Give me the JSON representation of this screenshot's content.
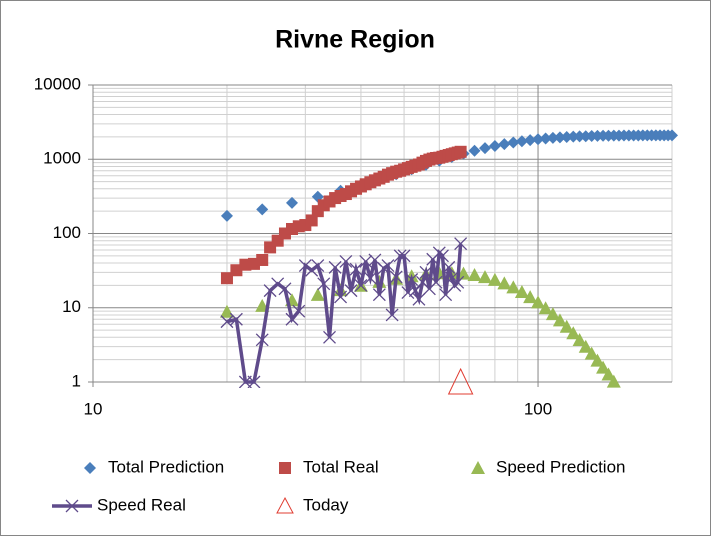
{
  "chart_data": {
    "type": "scatter",
    "title": "Rivne Region",
    "xlog": true,
    "ylog": true,
    "grid": true,
    "minor_grid": true,
    "legend": "bottom",
    "xlim": [
      10,
      200
    ],
    "xticks": [
      10,
      100
    ],
    "ylim": [
      1,
      10000
    ],
    "yticks": [
      1,
      10,
      100,
      1000,
      10000
    ],
    "series": [
      {
        "name": "Total Prediction",
        "color": "#4a7ebb",
        "marker": "diamond",
        "x": [
          20,
          24,
          28,
          32,
          36,
          40,
          44,
          48,
          52,
          56,
          60,
          64,
          68,
          72,
          76,
          80,
          84,
          88,
          92,
          96,
          100,
          104,
          108,
          112,
          116,
          120,
          124,
          128,
          132,
          136,
          140,
          144,
          148,
          152,
          156,
          160,
          164,
          168,
          172,
          176,
          180,
          184,
          188,
          192,
          196,
          200
        ],
        "values": [
          173,
          211,
          258,
          313,
          377,
          451,
          535,
          629,
          732,
          841,
          956,
          1074,
          1190,
          1303,
          1410,
          1510,
          1600,
          1680,
          1750,
          1810,
          1862,
          1905,
          1941,
          1971,
          1996,
          2016,
          2032,
          2044,
          2055,
          2063,
          2069,
          2075,
          2079,
          2083,
          2086,
          2088,
          2090,
          2092,
          2093,
          2094,
          2095,
          2096,
          2097,
          2097,
          2098,
          2098
        ]
      },
      {
        "name": "Total Real",
        "color": "#be4b48",
        "marker": "square",
        "x": [
          20,
          21,
          22,
          23,
          24,
          25,
          26,
          27,
          28,
          29,
          30,
          31,
          32,
          33,
          34,
          35,
          36,
          37,
          38,
          39,
          40,
          41,
          42,
          43,
          44,
          45,
          46,
          47,
          48,
          49,
          50,
          51,
          52,
          53,
          54,
          55,
          56,
          57,
          58,
          59,
          60,
          61,
          62,
          63,
          64,
          65,
          66,
          67
        ],
        "values": [
          25,
          32,
          38,
          39,
          44,
          65,
          80,
          100,
          115,
          125,
          130,
          150,
          200,
          240,
          270,
          300,
          320,
          340,
          370,
          400,
          430,
          460,
          490,
          520,
          550,
          580,
          620,
          650,
          680,
          700,
          730,
          760,
          790,
          820,
          850,
          900,
          950,
          990,
          1020,
          1040,
          1050,
          1080,
          1110,
          1140,
          1170,
          1200,
          1230,
          1260
        ]
      },
      {
        "name": "Speed Prediction",
        "color": "#98b954",
        "marker": "triangle",
        "x": [
          20,
          24,
          28,
          32,
          36,
          40,
          44,
          48,
          52,
          56,
          60,
          64,
          68,
          72,
          76,
          80,
          84,
          88,
          92,
          96,
          100,
          104,
          108,
          112,
          116,
          120,
          124,
          128,
          132,
          136,
          140,
          144,
          148
        ],
        "values": [
          8.85,
          10.6,
          12.6,
          14.9,
          17.3,
          19.8,
          22.3,
          24.6,
          26.6,
          28.2,
          29.1,
          29.3,
          28.8,
          27.6,
          25.9,
          23.7,
          21.3,
          18.8,
          16.3,
          13.9,
          11.8,
          9.85,
          8.2,
          6.77,
          5.54,
          4.53,
          3.68,
          2.98,
          2.41,
          1.94,
          1.56,
          1.26,
          1.01
        ]
      },
      {
        "name": "Speed Real",
        "color": "#5f4b8b",
        "marker": "x",
        "line": true,
        "x": [
          20,
          21,
          22,
          23,
          24,
          25,
          26,
          27,
          28,
          29,
          30,
          31,
          32,
          33,
          34,
          35,
          36,
          37,
          38,
          39,
          40,
          41,
          42,
          43,
          44,
          45,
          46,
          47,
          48,
          49,
          50,
          51,
          52,
          53,
          54,
          55,
          56,
          57,
          58,
          59,
          60,
          61,
          62,
          63,
          64,
          65,
          66,
          67
        ],
        "values": [
          6.5,
          7,
          1,
          1,
          3.7,
          17,
          21,
          18,
          7,
          9,
          37,
          32,
          37,
          21,
          4,
          35,
          14,
          42,
          17,
          33,
          20,
          42,
          25,
          44,
          15,
          34,
          37,
          8,
          26,
          50,
          50,
          16,
          24,
          17,
          13,
          22,
          30,
          18,
          45,
          22,
          55,
          50,
          15,
          35,
          25,
          20,
          22,
          73
        ]
      },
      {
        "name": "Today",
        "color": "#e03c31",
        "marker": "triangle-open",
        "x": [
          67
        ],
        "values": [
          1
        ]
      }
    ]
  }
}
